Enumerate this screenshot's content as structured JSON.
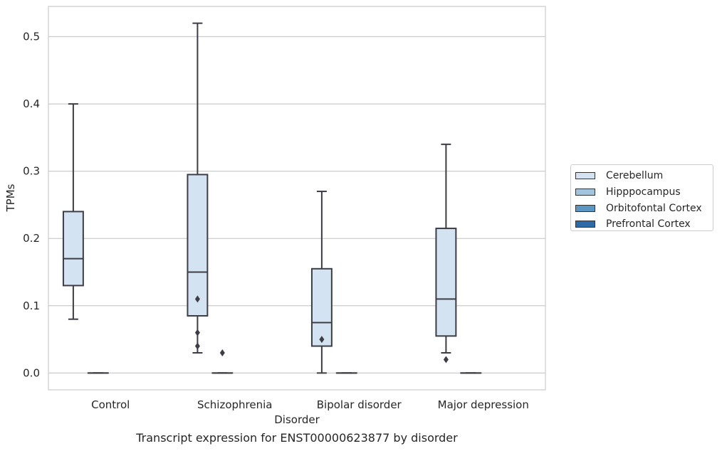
{
  "caption": "Transcript expression for ENST00000623877 by disorder",
  "chart_data": {
    "type": "box",
    "xlabel": "Disorder",
    "ylabel": "TPMs",
    "ylim": [
      -0.025,
      0.545
    ],
    "yticks": [
      "0.0",
      "0.1",
      "0.2",
      "0.3",
      "0.4",
      "0.5"
    ],
    "ytick_values": [
      0.0,
      0.1,
      0.2,
      0.3,
      0.4,
      0.5
    ],
    "grid": true,
    "legend_position": "right",
    "categories": [
      "Control",
      "Schizophrenia",
      "Bipolar disorder",
      "Major depression"
    ],
    "series": [
      {
        "name": "Cerebellum",
        "color": "#d4e3f1",
        "boxes": [
          {
            "whisker_low": 0.08,
            "q1": 0.13,
            "median": 0.17,
            "q3": 0.24,
            "whisker_high": 0.4,
            "outliers": []
          },
          {
            "whisker_low": 0.03,
            "q1": 0.085,
            "median": 0.15,
            "q3": 0.295,
            "whisker_high": 0.52,
            "outliers": [
              0.11,
              0.06,
              0.04
            ]
          },
          {
            "whisker_low": 0.0,
            "q1": 0.04,
            "median": 0.075,
            "q3": 0.155,
            "whisker_high": 0.27,
            "outliers": [
              0.05
            ]
          },
          {
            "whisker_low": 0.03,
            "q1": 0.055,
            "median": 0.11,
            "q3": 0.215,
            "whisker_high": 0.34,
            "outliers": [
              0.02
            ]
          }
        ]
      },
      {
        "name": "Hipppocampus",
        "color": "#a3c4dd",
        "boxes": [
          {
            "whisker_low": 0.0,
            "q1": 0.0,
            "median": 0.0,
            "q3": 0.0,
            "whisker_high": 0.0,
            "outliers": []
          },
          {
            "whisker_low": 0.0,
            "q1": 0.0,
            "median": 0.0,
            "q3": 0.0,
            "whisker_high": 0.0,
            "outliers": [
              0.03
            ]
          },
          {
            "whisker_low": 0.0,
            "q1": 0.0,
            "median": 0.0,
            "q3": 0.0,
            "whisker_high": 0.0,
            "outliers": []
          },
          {
            "whisker_low": 0.0,
            "q1": 0.0,
            "median": 0.0,
            "q3": 0.0,
            "whisker_high": 0.0,
            "outliers": []
          }
        ]
      },
      {
        "name": "Orbitofontal Cortex",
        "color": "#5c97c4",
        "boxes": []
      },
      {
        "name": "Prefrontal Cortex",
        "color": "#2d6aa8",
        "boxes": []
      }
    ]
  }
}
